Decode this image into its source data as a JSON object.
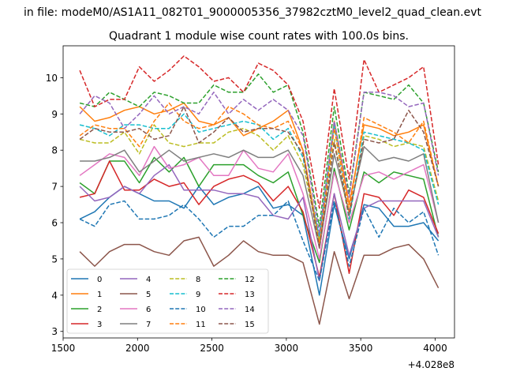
{
  "chart_data": {
    "type": "line",
    "suptitle": "in file: modeM0/AS1A11_082T01_9000005356_37982cztM0_level2_quad_clean.evt",
    "title": "Quadrant 1 module wise count rates with 100.0s bins.",
    "xlabel": "",
    "ylabel": "",
    "x_offset_label": "+4.028e8",
    "xlim": [
      1500,
      4130
    ],
    "ylim": [
      2.82,
      10.88
    ],
    "x_ticks": [
      1500,
      2000,
      2500,
      3000,
      3500,
      4000
    ],
    "x_tick_labels": [
      "1500",
      "2000",
      "2500",
      "3000",
      "3500",
      "4000"
    ],
    "y_ticks": [
      3,
      4,
      5,
      6,
      7,
      8,
      9,
      10
    ],
    "y_tick_labels": [
      "3",
      "4",
      "5",
      "6",
      "7",
      "8",
      "9",
      "10"
    ],
    "legend_location": "lower-left",
    "x": [
      1612,
      1712,
      1812,
      1912,
      2012,
      2112,
      2212,
      2312,
      2412,
      2512,
      2612,
      2712,
      2812,
      2912,
      3012,
      3112,
      3222,
      3322,
      3422,
      3522,
      3622,
      3722,
      3822,
      3922,
      4022
    ],
    "series": [
      {
        "name": "0",
        "color": "#1f77b4",
        "dash": "solid",
        "values": [
          6.1,
          6.3,
          6.7,
          7.0,
          6.8,
          6.6,
          6.6,
          6.4,
          7.0,
          6.5,
          6.7,
          6.8,
          7.0,
          6.4,
          6.5,
          6.2,
          4.0,
          6.5,
          5.0,
          6.5,
          6.4,
          5.9,
          5.9,
          6.0,
          5.5
        ]
      },
      {
        "name": "1",
        "color": "#ff7f0e",
        "dash": "solid",
        "values": [
          9.2,
          8.8,
          8.9,
          9.1,
          9.2,
          9.0,
          9.1,
          9.3,
          8.8,
          8.7,
          8.9,
          8.4,
          8.6,
          8.8,
          9.1,
          8.0,
          5.5,
          8.8,
          6.5,
          8.7,
          8.6,
          8.4,
          8.5,
          8.7,
          7.0
        ]
      },
      {
        "name": "2",
        "color": "#2ca02c",
        "dash": "solid",
        "values": [
          7.1,
          6.8,
          7.7,
          7.7,
          7.1,
          7.8,
          7.4,
          7.8,
          7.0,
          7.6,
          7.6,
          7.6,
          7.3,
          7.1,
          7.4,
          6.2,
          4.9,
          7.5,
          5.8,
          7.4,
          7.1,
          7.4,
          7.3,
          7.2,
          5.6
        ]
      },
      {
        "name": "3",
        "color": "#d62728",
        "dash": "solid",
        "values": [
          6.7,
          6.8,
          7.7,
          6.9,
          6.9,
          7.2,
          7.0,
          7.1,
          6.5,
          7.0,
          7.2,
          7.3,
          7.1,
          6.6,
          7.0,
          6.3,
          4.5,
          6.8,
          4.6,
          6.8,
          6.7,
          6.2,
          6.9,
          6.7,
          5.7
        ]
      },
      {
        "name": "4",
        "color": "#9467bd",
        "dash": "solid",
        "values": [
          7.0,
          6.6,
          6.7,
          7.0,
          6.8,
          7.3,
          7.6,
          6.9,
          6.9,
          6.9,
          6.8,
          6.8,
          6.7,
          6.2,
          6.1,
          6.7,
          4.4,
          6.8,
          5.1,
          6.4,
          6.6,
          6.6,
          6.6,
          6.6,
          5.6
        ]
      },
      {
        "name": "5",
        "color": "#8c564b",
        "dash": "solid",
        "values": [
          5.2,
          4.8,
          5.2,
          5.4,
          5.4,
          5.2,
          5.1,
          5.5,
          5.6,
          4.8,
          5.1,
          5.5,
          5.2,
          5.1,
          5.1,
          4.9,
          3.2,
          5.2,
          3.9,
          5.1,
          5.1,
          5.3,
          5.4,
          5.0,
          4.2
        ]
      },
      {
        "name": "6",
        "color": "#e377c2",
        "dash": "solid",
        "values": [
          7.3,
          7.6,
          7.9,
          7.8,
          7.3,
          8.1,
          7.5,
          7.6,
          7.8,
          7.3,
          7.3,
          8.0,
          7.5,
          7.4,
          7.9,
          6.8,
          5.0,
          7.4,
          6.0,
          7.3,
          7.4,
          7.2,
          7.4,
          7.6,
          6.0
        ]
      },
      {
        "name": "7",
        "color": "#7f7f7f",
        "dash": "solid",
        "values": [
          7.7,
          7.7,
          7.8,
          8.0,
          7.4,
          7.7,
          8.0,
          7.7,
          7.8,
          7.9,
          7.8,
          8.0,
          7.8,
          7.8,
          8.0,
          7.3,
          5.3,
          7.9,
          6.3,
          8.1,
          7.7,
          7.8,
          7.7,
          7.9,
          6.0
        ]
      },
      {
        "name": "8",
        "color": "#bcbd22",
        "dash": "dashed",
        "values": [
          8.3,
          8.2,
          8.2,
          8.5,
          7.9,
          8.7,
          8.2,
          8.1,
          8.2,
          8.2,
          8.5,
          8.6,
          8.4,
          8.0,
          8.4,
          7.6,
          5.5,
          8.3,
          6.1,
          8.4,
          8.3,
          8.1,
          8.2,
          8.1,
          6.6
        ]
      },
      {
        "name": "9",
        "color": "#17becf",
        "dash": "dashed",
        "values": [
          8.7,
          8.6,
          8.4,
          8.7,
          8.7,
          8.6,
          8.6,
          9.0,
          8.5,
          8.6,
          8.7,
          8.8,
          8.7,
          8.3,
          8.6,
          7.8,
          5.6,
          8.7,
          6.1,
          8.5,
          8.4,
          8.3,
          8.2,
          8.0,
          6.5
        ]
      },
      {
        "name": "10",
        "color": "#1f77b4",
        "dash": "dashed",
        "values": [
          6.1,
          5.9,
          6.5,
          6.6,
          6.1,
          6.1,
          6.2,
          6.5,
          6.1,
          5.6,
          5.9,
          5.9,
          6.2,
          6.2,
          6.6,
          5.5,
          4.4,
          6.6,
          4.8,
          6.4,
          5.6,
          6.4,
          6.0,
          6.3,
          5.1
        ]
      },
      {
        "name": "11",
        "color": "#ff7f0e",
        "dash": "dashed",
        "values": [
          8.4,
          8.7,
          8.6,
          8.6,
          8.1,
          8.8,
          9.3,
          8.8,
          8.6,
          8.7,
          9.2,
          9.0,
          8.7,
          8.6,
          8.8,
          8.0,
          5.4,
          8.6,
          6.3,
          8.9,
          8.7,
          8.5,
          8.2,
          8.8,
          7.0
        ]
      },
      {
        "name": "12",
        "color": "#2ca02c",
        "dash": "dashed",
        "values": [
          9.3,
          9.2,
          9.6,
          9.4,
          9.2,
          9.6,
          9.5,
          9.3,
          9.3,
          9.8,
          9.6,
          9.6,
          10.1,
          9.6,
          9.8,
          8.5,
          5.9,
          9.2,
          6.8,
          9.6,
          9.5,
          9.4,
          9.8,
          9.3,
          7.4
        ]
      },
      {
        "name": "13",
        "color": "#d62728",
        "dash": "dashed",
        "values": [
          10.2,
          9.2,
          9.4,
          9.4,
          10.3,
          9.9,
          10.2,
          10.6,
          10.3,
          9.9,
          10.0,
          9.6,
          10.4,
          10.2,
          9.8,
          8.8,
          6.4,
          9.7,
          7.2,
          10.5,
          9.6,
          9.8,
          10.0,
          10.3,
          7.6
        ]
      },
      {
        "name": "14",
        "color": "#9467bd",
        "dash": "dashed",
        "values": [
          9.0,
          9.5,
          9.3,
          8.6,
          9.0,
          9.5,
          9.0,
          9.2,
          9.0,
          9.6,
          9.0,
          9.4,
          9.1,
          9.4,
          9.1,
          8.4,
          5.7,
          8.8,
          6.7,
          9.6,
          9.6,
          9.5,
          9.2,
          9.3,
          7.3
        ]
      },
      {
        "name": "15",
        "color": "#8c564b",
        "dash": "dashed",
        "values": [
          8.3,
          8.6,
          8.5,
          8.5,
          8.6,
          8.3,
          8.4,
          9.2,
          8.2,
          8.5,
          8.9,
          8.5,
          8.6,
          8.6,
          8.5,
          7.9,
          5.3,
          8.2,
          6.2,
          8.3,
          8.2,
          8.3,
          9.1,
          8.5,
          7.0
        ]
      }
    ]
  }
}
